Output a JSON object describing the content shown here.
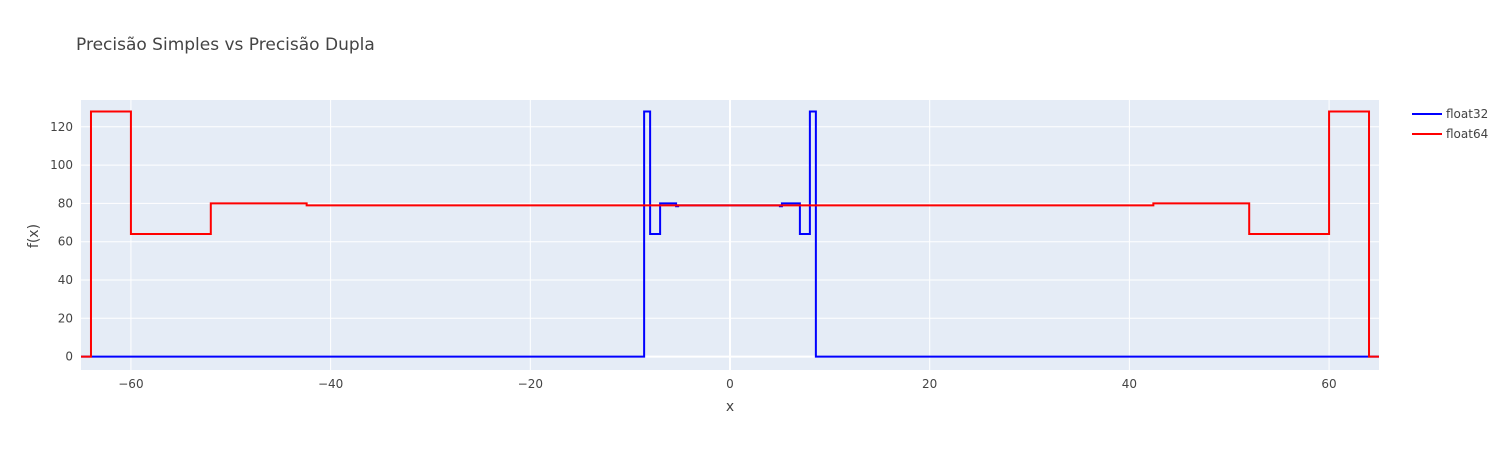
{
  "chart_data": {
    "type": "line",
    "title": "Precisão Simples vs Precisão Dupla",
    "xlabel": "x",
    "ylabel": "f(x)",
    "xlim": [
      -65,
      65
    ],
    "ylim": [
      -7,
      134
    ],
    "x_ticks": [
      -60,
      -40,
      -20,
      0,
      20,
      40,
      60
    ],
    "x_tick_labels": [
      "−60",
      "−40",
      "−20",
      "0",
      "20",
      "40",
      "60"
    ],
    "y_ticks": [
      0,
      20,
      40,
      60,
      80,
      100,
      120
    ],
    "y_tick_labels": [
      "0",
      "20",
      "40",
      "60",
      "80",
      "100",
      "120"
    ],
    "grid": true,
    "legend_position": "top-right",
    "plot_background": "#E5ECF6",
    "series": [
      {
        "name": "float32",
        "color": "#0000ff",
        "x": [
          -65,
          -8.6,
          -8.6,
          -8.0,
          -8.0,
          -7.0,
          -7.0,
          -5.4,
          -5.4,
          -5.2,
          -5.2,
          -5.0,
          -5.0,
          5.0,
          5.0,
          5.2,
          5.2,
          5.4,
          5.4,
          7.0,
          7.0,
          8.0,
          8.0,
          8.6,
          8.6,
          65
        ],
        "y": [
          0,
          0,
          128,
          128,
          64,
          64,
          80,
          80,
          78.5,
          78.5,
          79,
          79,
          79,
          79,
          78.5,
          78.5,
          80,
          80,
          80,
          80,
          64,
          64,
          128,
          128,
          0,
          0
        ]
      },
      {
        "name": "float64",
        "color": "#ff0000",
        "x": [
          -65,
          -64,
          -64,
          -60,
          -60,
          -52,
          -52,
          -42.4,
          -42.4,
          -39.6,
          -39.6,
          39.6,
          39.6,
          42.4,
          42.4,
          52,
          52,
          60,
          60,
          64,
          64,
          65
        ],
        "y": [
          0,
          0,
          128,
          128,
          64,
          64,
          80,
          80,
          79,
          79,
          79,
          79,
          79,
          79,
          80,
          80,
          64,
          64,
          128,
          128,
          0,
          0
        ]
      }
    ]
  }
}
